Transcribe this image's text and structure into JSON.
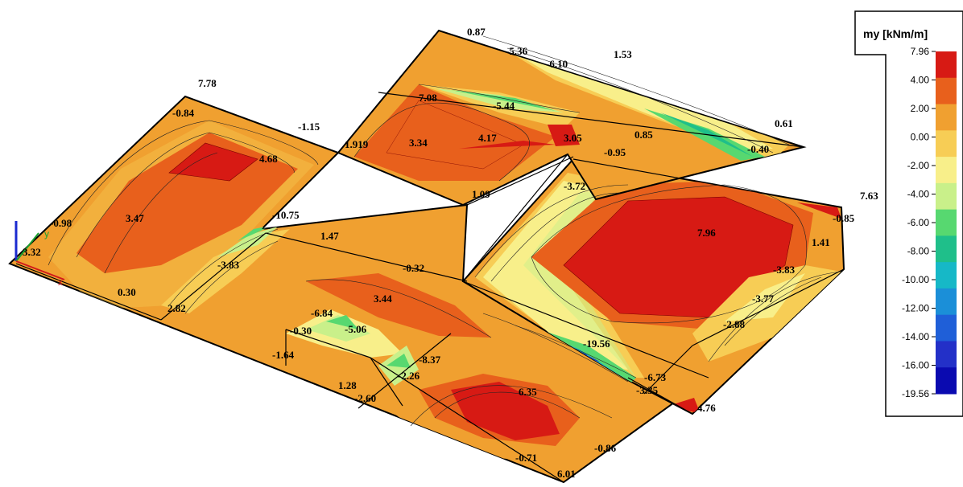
{
  "legend": {
    "title": "my [kNm/m]",
    "ticks": [
      "7.96",
      "4.00",
      "2.00",
      "0.00",
      "-2.00",
      "-4.00",
      "-6.00",
      "-8.00",
      "-10.00",
      "-12.00",
      "-14.00",
      "-16.00",
      "-19.56"
    ],
    "colors": [
      "#d71a14",
      "#e8601c",
      "#f0a030",
      "#f7cd55",
      "#f8ef8a",
      "#c9f08a",
      "#57d870",
      "#1fbf8a",
      "#16b8c7",
      "#1b8fd8",
      "#1f5fd8",
      "#2330c8",
      "#0a0ab0"
    ]
  },
  "labels": [
    {
      "text": "7.78"
    },
    {
      "text": "-0.84"
    },
    {
      "text": "-1.15"
    },
    {
      "text": "4.68"
    },
    {
      "text": "3.47"
    },
    {
      "text": "-0.98"
    },
    {
      "text": "3.32"
    },
    {
      "text": "0.30"
    },
    {
      "text": "2.82"
    },
    {
      "text": "-10.75"
    },
    {
      "text": "1.47"
    },
    {
      "text": "-3.83"
    },
    {
      "text": "0.87"
    },
    {
      "text": "-5.36"
    },
    {
      "text": "-6.10"
    },
    {
      "text": "1.53"
    },
    {
      "text": "7.08"
    },
    {
      "text": "-5.44"
    },
    {
      "text": "1.919"
    },
    {
      "text": "3.34"
    },
    {
      "text": "4.17"
    },
    {
      "text": "3.05"
    },
    {
      "text": "-0.95"
    },
    {
      "text": "0.85"
    },
    {
      "text": "0.61"
    },
    {
      "text": "-0.40"
    },
    {
      "text": "-3.72"
    },
    {
      "text": "1.09"
    },
    {
      "text": "7.63"
    },
    {
      "text": "-0.85"
    },
    {
      "text": "7.96"
    },
    {
      "text": "1.41"
    },
    {
      "text": "-3.83"
    },
    {
      "text": "-3.77"
    },
    {
      "text": "-2.88"
    },
    {
      "text": "-0.32"
    },
    {
      "text": "3.44"
    },
    {
      "text": "-6.84"
    },
    {
      "text": "-5.06"
    },
    {
      "text": "-0.30"
    },
    {
      "text": "-1.64"
    },
    {
      "text": "-8.37"
    },
    {
      "text": "-2.26"
    },
    {
      "text": "1.28"
    },
    {
      "text": "-2.60"
    },
    {
      "text": "-19.56"
    },
    {
      "text": "-6.73"
    },
    {
      "text": "-3.35"
    },
    {
      "text": "6.35"
    },
    {
      "text": "4.76"
    },
    {
      "text": "-0.86"
    },
    {
      "text": "-0.71"
    },
    {
      "text": "6.01"
    }
  ]
}
